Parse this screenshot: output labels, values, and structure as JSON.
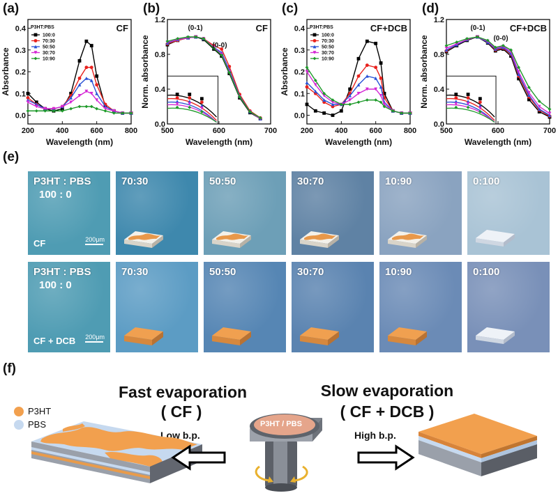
{
  "panels": {
    "a": {
      "label": "(a)",
      "tag": "CF"
    },
    "b": {
      "label": "(b)",
      "tag": "CF"
    },
    "c": {
      "label": "(c)",
      "tag": "CF+DCB"
    },
    "d": {
      "label": "(d)",
      "tag": "CF+DCB"
    },
    "e": {
      "label": "(e)"
    },
    "f": {
      "label": "(f)"
    }
  },
  "chart_data": [
    {
      "id": "a",
      "type": "line",
      "xlabel": "Wavelength (nm)",
      "ylabel": "Absorbance",
      "xlim": [
        200,
        800
      ],
      "ylim": [
        -0.04,
        0.44
      ],
      "xticks": [
        200,
        400,
        600,
        800
      ],
      "yticks": [
        0.0,
        0.1,
        0.2,
        0.3,
        0.4
      ],
      "legend_title": "P3HT:PBS",
      "legend_position": "top-left",
      "x": [
        200,
        250,
        300,
        350,
        400,
        450,
        500,
        540,
        570,
        600,
        650,
        700,
        750,
        800
      ],
      "series": [
        {
          "name": "100:0",
          "color": "#000000",
          "values": [
            0.1,
            0.06,
            0.03,
            0.02,
            0.03,
            0.1,
            0.25,
            0.34,
            0.32,
            0.18,
            0.04,
            0.02,
            0.01,
            0.01
          ]
        },
        {
          "name": "70:30",
          "color": "#e8211d",
          "values": [
            0.08,
            0.05,
            0.03,
            0.03,
            0.04,
            0.09,
            0.17,
            0.22,
            0.22,
            0.14,
            0.05,
            0.02,
            0.01,
            0.01
          ]
        },
        {
          "name": "50:50",
          "color": "#2a52d6",
          "values": [
            0.07,
            0.05,
            0.03,
            0.03,
            0.04,
            0.08,
            0.14,
            0.17,
            0.16,
            0.1,
            0.04,
            0.02,
            0.01,
            0.01
          ]
        },
        {
          "name": "30:70",
          "color": "#d426d4",
          "values": [
            0.06,
            0.04,
            0.03,
            0.03,
            0.04,
            0.06,
            0.09,
            0.11,
            0.1,
            0.07,
            0.03,
            0.02,
            0.01,
            0.01
          ]
        },
        {
          "name": "10:90",
          "color": "#1e9a2a",
          "values": [
            0.02,
            0.02,
            0.02,
            0.02,
            0.02,
            0.03,
            0.04,
            0.04,
            0.04,
            0.03,
            0.02,
            0.01,
            0.01,
            0.01
          ]
        }
      ]
    },
    {
      "id": "b",
      "type": "line",
      "xlabel": "Wavelength (nm)",
      "ylabel": "Norm. absorbance",
      "xlim": [
        500,
        700
      ],
      "ylim": [
        0.0,
        1.2
      ],
      "xticks": [
        500,
        600,
        700
      ],
      "yticks": [
        0.0,
        0.4,
        0.8,
        1.2
      ],
      "annotations": [
        "(0-1)",
        "(0-0)"
      ],
      "x": [
        500,
        520,
        540,
        555,
        570,
        590,
        605,
        620,
        640,
        660,
        680
      ],
      "series": [
        {
          "name": "100:0",
          "color": "#000000",
          "values": [
            0.91,
            0.96,
            0.99,
            1.0,
            0.97,
            0.86,
            0.78,
            0.58,
            0.3,
            0.13,
            0.06
          ]
        },
        {
          "name": "70:30",
          "color": "#e8211d",
          "values": [
            0.92,
            0.96,
            0.99,
            1.0,
            0.98,
            0.9,
            0.86,
            0.66,
            0.34,
            0.15,
            0.07
          ]
        },
        {
          "name": "50:50",
          "color": "#2a52d6",
          "values": [
            0.93,
            0.97,
            0.99,
            1.0,
            0.98,
            0.88,
            0.82,
            0.62,
            0.32,
            0.14,
            0.06
          ]
        },
        {
          "name": "30:70",
          "color": "#d426d4",
          "values": [
            0.94,
            0.97,
            0.99,
            1.0,
            0.98,
            0.88,
            0.8,
            0.6,
            0.31,
            0.14,
            0.06
          ]
        },
        {
          "name": "10:90",
          "color": "#1e9a2a",
          "values": [
            0.95,
            0.98,
            1.0,
            1.0,
            0.98,
            0.87,
            0.79,
            0.59,
            0.31,
            0.14,
            0.07
          ]
        }
      ]
    },
    {
      "id": "c",
      "type": "line",
      "xlabel": "Wavelength (nm)",
      "ylabel": "Absorbance",
      "xlim": [
        200,
        800
      ],
      "ylim": [
        -0.04,
        0.44
      ],
      "xticks": [
        200,
        400,
        600,
        800
      ],
      "yticks": [
        0.0,
        0.1,
        0.2,
        0.3,
        0.4
      ],
      "legend_title": "P3HT:PBS",
      "legend_position": "top-left",
      "x": [
        200,
        250,
        300,
        350,
        400,
        450,
        500,
        550,
        600,
        630,
        650,
        700,
        750,
        800
      ],
      "series": [
        {
          "name": "100:0",
          "color": "#000000",
          "values": [
            0.05,
            0.02,
            0.01,
            0.0,
            0.02,
            0.12,
            0.26,
            0.34,
            0.33,
            0.24,
            0.1,
            0.02,
            0.01,
            0.01
          ]
        },
        {
          "name": "70:30",
          "color": "#e8211d",
          "values": [
            0.13,
            0.1,
            0.06,
            0.04,
            0.05,
            0.1,
            0.18,
            0.23,
            0.22,
            0.17,
            0.08,
            0.02,
            0.01,
            0.01
          ]
        },
        {
          "name": "50:50",
          "color": "#2a52d6",
          "values": [
            0.15,
            0.11,
            0.07,
            0.05,
            0.05,
            0.09,
            0.14,
            0.18,
            0.17,
            0.13,
            0.06,
            0.02,
            0.01,
            0.01
          ]
        },
        {
          "name": "30:70",
          "color": "#d426d4",
          "values": [
            0.2,
            0.14,
            0.09,
            0.06,
            0.05,
            0.07,
            0.1,
            0.12,
            0.12,
            0.09,
            0.05,
            0.02,
            0.01,
            0.01
          ]
        },
        {
          "name": "10:90",
          "color": "#1e9a2a",
          "values": [
            0.22,
            0.16,
            0.1,
            0.07,
            0.05,
            0.05,
            0.06,
            0.07,
            0.07,
            0.06,
            0.04,
            0.02,
            0.01,
            0.01
          ]
        }
      ]
    },
    {
      "id": "d",
      "type": "line",
      "xlabel": "Wavelength (nm)",
      "ylabel": "Norm. absorbance",
      "xlim": [
        500,
        700
      ],
      "ylim": [
        0.0,
        1.2
      ],
      "xticks": [
        500,
        600,
        700
      ],
      "yticks": [
        0.0,
        0.4,
        0.8,
        1.2
      ],
      "annotations": [
        "(0-1)",
        "(0-0)"
      ],
      "x": [
        500,
        520,
        540,
        560,
        580,
        595,
        610,
        625,
        640,
        660,
        680,
        700
      ],
      "series": [
        {
          "name": "100:0",
          "color": "#000000",
          "values": [
            0.83,
            0.9,
            0.96,
            1.0,
            0.93,
            0.84,
            0.86,
            0.78,
            0.52,
            0.28,
            0.14,
            0.08
          ]
        },
        {
          "name": "70:30",
          "color": "#e8211d",
          "values": [
            0.84,
            0.91,
            0.97,
            1.0,
            0.94,
            0.85,
            0.87,
            0.8,
            0.55,
            0.31,
            0.16,
            0.09
          ]
        },
        {
          "name": "50:50",
          "color": "#2a52d6",
          "values": [
            0.85,
            0.91,
            0.97,
            1.0,
            0.94,
            0.86,
            0.88,
            0.81,
            0.57,
            0.33,
            0.17,
            0.1
          ]
        },
        {
          "name": "30:70",
          "color": "#d426d4",
          "values": [
            0.87,
            0.92,
            0.97,
            1.0,
            0.95,
            0.87,
            0.89,
            0.83,
            0.6,
            0.36,
            0.2,
            0.12
          ]
        },
        {
          "name": "10:90",
          "color": "#1e9a2a",
          "values": [
            0.9,
            0.94,
            0.98,
            1.0,
            0.96,
            0.88,
            0.9,
            0.85,
            0.65,
            0.42,
            0.26,
            0.17
          ]
        }
      ]
    }
  ],
  "micrographs": {
    "row1": [
      {
        "ratio_line1": "P3HT : PBS",
        "ratio_line2": "100 : 0",
        "sub": "CF",
        "scale": "200μm",
        "color": "#4f9cb3",
        "film": "none"
      },
      {
        "ratio_line1": "70:30",
        "color": "#3e88ad",
        "film": "cf"
      },
      {
        "ratio_line1": "50:50",
        "color": "#6d9fb7",
        "film": "cf"
      },
      {
        "ratio_line1": "30:70",
        "color": "#5f82a4",
        "film": "cf"
      },
      {
        "ratio_line1": "10:90",
        "color": "#8aa3c0",
        "film": "cf"
      },
      {
        "ratio_line1": "0:100",
        "color": "#a9c3d5",
        "film": "plain"
      }
    ],
    "row2": [
      {
        "ratio_line1": "P3HT : PBS",
        "ratio_line2": "100 : 0",
        "sub": "CF + DCB",
        "scale": "200μm",
        "color": "#4f9cb3",
        "film": "none"
      },
      {
        "ratio_line1": "70:30",
        "color": "#5c9cc4",
        "film": "dcb"
      },
      {
        "ratio_line1": "50:50",
        "color": "#5686b4",
        "film": "dcb"
      },
      {
        "ratio_line1": "30:70",
        "color": "#5a83b0",
        "film": "dcb"
      },
      {
        "ratio_line1": "10:90",
        "color": "#6b8bb6",
        "film": "dcb"
      },
      {
        "ratio_line1": "0:100",
        "color": "#7990b8",
        "film": "plain"
      }
    ]
  },
  "schematic": {
    "legend": [
      {
        "label": "P3HT",
        "color": "#f2a04e"
      },
      {
        "label": "PBS",
        "color": "#c6d9ef"
      }
    ],
    "fast": {
      "title": "Fast evaporation",
      "solvent": "( CF )",
      "bp": "Low b.p."
    },
    "slow": {
      "title": "Slow evaporation",
      "solvent": "( CF + DCB )",
      "bp": "High b.p."
    },
    "center_label": "P3HT / PBS"
  }
}
